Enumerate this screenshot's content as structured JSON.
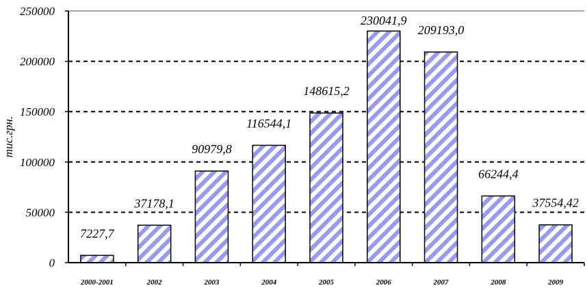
{
  "chart_data": {
    "type": "bar",
    "title": "",
    "xlabel": "",
    "ylabel": "тис.грн.",
    "ylim": [
      0,
      250000
    ],
    "yticks": [
      0,
      50000,
      100000,
      150000,
      200000,
      250000
    ],
    "ytick_labels": [
      "0",
      "50000",
      "100000",
      "150000",
      "200000",
      "250000"
    ],
    "grid": "horizontal-dotted",
    "legend": "none",
    "categories": [
      "2000-2001",
      "2002",
      "2003",
      "2004",
      "2005",
      "2006",
      "2007",
      "2008",
      "2009"
    ],
    "values": [
      7227.7,
      37178.1,
      90979.8,
      116544.1,
      148615.2,
      230041.9,
      209193.0,
      66244.4,
      37554.42
    ],
    "data_labels": [
      "7227,7",
      "37178,1",
      "90979,8",
      "116544,1",
      "148615,2",
      "230041,9",
      "209193,0",
      "66244,4",
      "37554,42"
    ],
    "colors": {
      "bar_stripe": "#9999ee",
      "bar_background": "#ffffff",
      "bar_border": "#000000",
      "grid": "#000000"
    }
  }
}
